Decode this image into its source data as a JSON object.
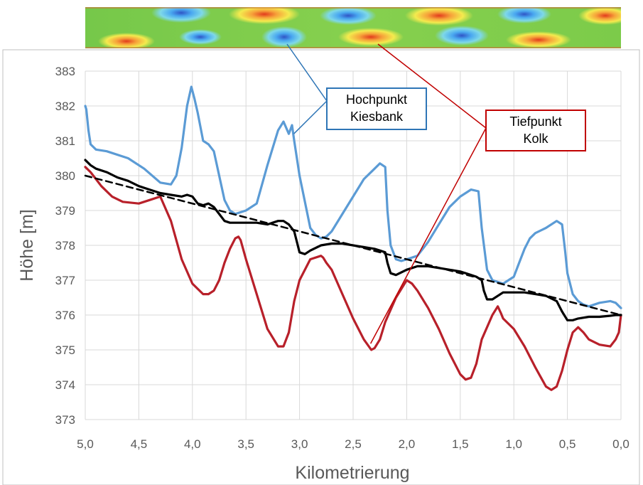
{
  "chart_data": {
    "type": "line",
    "title": "",
    "xlabel": "Kilometrierung",
    "ylabel": "Höhe [m]",
    "xlim": [
      5.0,
      0.0
    ],
    "x_reversed": true,
    "ylim": [
      373,
      383
    ],
    "xticks": [
      "5,0",
      "4,5",
      "4,0",
      "3,5",
      "3,0",
      "2,5",
      "2,0",
      "1,5",
      "1,0",
      "0,5",
      "0,0"
    ],
    "yticks": [
      "373",
      "374",
      "375",
      "376",
      "377",
      "378",
      "379",
      "380",
      "381",
      "382",
      "383"
    ],
    "grid": true,
    "legend": "none",
    "colors": {
      "blue": "#5b9bd5",
      "red": "#b8202a",
      "black": "#000000",
      "callout_blue": "#2e75b6",
      "callout_red": "#c00000"
    },
    "series": [
      {
        "color": "#5b9bd5",
        "x": [
          5.0,
          4.99,
          4.97,
          4.95,
          4.9,
          4.8,
          4.6,
          4.45,
          4.3,
          4.2,
          4.15,
          4.1,
          4.05,
          4.01,
          3.98,
          3.95,
          3.9,
          3.85,
          3.8,
          3.75,
          3.7,
          3.65,
          3.6,
          3.5,
          3.4,
          3.3,
          3.2,
          3.15,
          3.1,
          3.07,
          3.05,
          3.0,
          2.9,
          2.85,
          2.8,
          2.75,
          2.7,
          2.6,
          2.5,
          2.4,
          2.3,
          2.25,
          2.2,
          2.18,
          2.15,
          2.1,
          2.05,
          2.0,
          1.9,
          1.8,
          1.7,
          1.6,
          1.5,
          1.4,
          1.33,
          1.3,
          1.25,
          1.2,
          1.1,
          1.0,
          0.95,
          0.9,
          0.85,
          0.8,
          0.7,
          0.6,
          0.55,
          0.52,
          0.5,
          0.45,
          0.4,
          0.35,
          0.3,
          0.25,
          0.2,
          0.1,
          0.05,
          0.0
        ],
        "y": [
          382.0,
          381.9,
          381.3,
          380.9,
          380.75,
          380.7,
          380.5,
          380.2,
          379.8,
          379.75,
          380.0,
          380.8,
          382.0,
          382.55,
          382.2,
          381.8,
          381.0,
          380.9,
          380.7,
          380.0,
          379.3,
          379.0,
          378.9,
          379.0,
          379.2,
          380.3,
          381.3,
          381.55,
          381.2,
          381.45,
          381.0,
          380.0,
          378.5,
          378.3,
          378.2,
          378.25,
          378.4,
          378.9,
          379.4,
          379.9,
          380.2,
          380.35,
          380.25,
          379.0,
          378.0,
          377.6,
          377.55,
          377.6,
          377.7,
          378.1,
          378.6,
          379.1,
          379.4,
          379.6,
          379.55,
          378.5,
          377.3,
          377.0,
          376.9,
          377.1,
          377.5,
          377.9,
          378.2,
          378.35,
          378.5,
          378.7,
          378.6,
          377.8,
          377.2,
          376.6,
          376.4,
          376.3,
          376.25,
          376.3,
          376.35,
          376.4,
          376.35,
          376.2
        ]
      },
      {
        "color": "#b8202a",
        "x": [
          5.0,
          4.95,
          4.9,
          4.85,
          4.75,
          4.65,
          4.5,
          4.4,
          4.3,
          4.2,
          4.1,
          4.0,
          3.9,
          3.85,
          3.8,
          3.75,
          3.7,
          3.65,
          3.6,
          3.57,
          3.55,
          3.5,
          3.4,
          3.3,
          3.2,
          3.15,
          3.1,
          3.05,
          3.0,
          2.9,
          2.8,
          2.78,
          2.75,
          2.7,
          2.6,
          2.5,
          2.4,
          2.33,
          2.3,
          2.25,
          2.2,
          2.1,
          2.0,
          1.95,
          1.9,
          1.8,
          1.7,
          1.6,
          1.5,
          1.45,
          1.4,
          1.35,
          1.3,
          1.2,
          1.15,
          1.12,
          1.1,
          1.0,
          0.9,
          0.8,
          0.7,
          0.65,
          0.6,
          0.55,
          0.5,
          0.45,
          0.4,
          0.35,
          0.3,
          0.2,
          0.1,
          0.05,
          0.02,
          0.0
        ],
        "y": [
          380.25,
          380.1,
          379.9,
          379.7,
          379.4,
          379.25,
          379.2,
          379.3,
          379.4,
          378.7,
          377.6,
          376.9,
          376.6,
          376.6,
          376.7,
          377.0,
          377.5,
          377.9,
          378.2,
          378.25,
          378.15,
          377.6,
          376.6,
          375.6,
          375.1,
          375.1,
          375.5,
          376.4,
          377.0,
          377.6,
          377.7,
          377.65,
          377.5,
          377.3,
          376.6,
          375.9,
          375.3,
          375.0,
          375.05,
          375.3,
          375.8,
          376.5,
          377.0,
          376.9,
          376.7,
          376.2,
          375.6,
          374.9,
          374.3,
          374.15,
          374.2,
          374.6,
          375.3,
          376.0,
          376.25,
          376.05,
          375.9,
          375.6,
          375.1,
          374.5,
          373.95,
          373.85,
          373.95,
          374.4,
          375.0,
          375.5,
          375.65,
          375.5,
          375.3,
          375.15,
          375.1,
          375.3,
          375.5,
          376.0
        ]
      },
      {
        "color": "#000000",
        "x": [
          5.0,
          4.95,
          4.9,
          4.8,
          4.7,
          4.6,
          4.5,
          4.4,
          4.3,
          4.2,
          4.1,
          4.05,
          4.0,
          3.95,
          3.9,
          3.85,
          3.8,
          3.75,
          3.7,
          3.65,
          3.6,
          3.5,
          3.4,
          3.3,
          3.2,
          3.15,
          3.1,
          3.05,
          3.0,
          2.95,
          2.9,
          2.8,
          2.7,
          2.6,
          2.5,
          2.4,
          2.3,
          2.25,
          2.2,
          2.18,
          2.15,
          2.1,
          2.0,
          1.9,
          1.8,
          1.7,
          1.6,
          1.5,
          1.45,
          1.4,
          1.35,
          1.3,
          1.28,
          1.25,
          1.2,
          1.1,
          1.0,
          0.9,
          0.8,
          0.7,
          0.6,
          0.55,
          0.5,
          0.45,
          0.4,
          0.3,
          0.2,
          0.1,
          0.05,
          0.0
        ],
        "y": [
          380.45,
          380.3,
          380.2,
          380.1,
          379.95,
          379.85,
          379.7,
          379.6,
          379.5,
          379.45,
          379.4,
          379.45,
          379.4,
          379.2,
          379.15,
          379.2,
          379.1,
          378.9,
          378.7,
          378.65,
          378.65,
          378.65,
          378.65,
          378.6,
          378.7,
          378.7,
          378.6,
          378.4,
          377.8,
          377.75,
          377.85,
          378.0,
          378.05,
          378.05,
          378.0,
          377.95,
          377.9,
          377.85,
          377.8,
          377.5,
          377.2,
          377.15,
          377.3,
          377.4,
          377.4,
          377.35,
          377.3,
          377.25,
          377.2,
          377.15,
          377.1,
          377.0,
          376.7,
          376.45,
          376.45,
          376.65,
          376.65,
          376.65,
          376.6,
          376.55,
          376.4,
          376.1,
          375.85,
          375.85,
          375.9,
          375.95,
          375.95,
          375.98,
          376.0,
          376.0
        ]
      },
      {
        "color": "#000000",
        "dash": "dashed",
        "x": [
          5.0,
          0.0
        ],
        "y": [
          380.0,
          376.0
        ]
      }
    ],
    "annotations": [
      {
        "text": [
          "Hochpunkt",
          "Kiesbank"
        ],
        "color": "#2e75b6",
        "points_to": {
          "x": 3.08,
          "y": 381.2
        }
      },
      {
        "text": [
          "Tiefpunkt",
          "Kolk"
        ],
        "color": "#c00000",
        "points_to": {
          "x": 2.35,
          "y": 375.1
        }
      }
    ]
  }
}
